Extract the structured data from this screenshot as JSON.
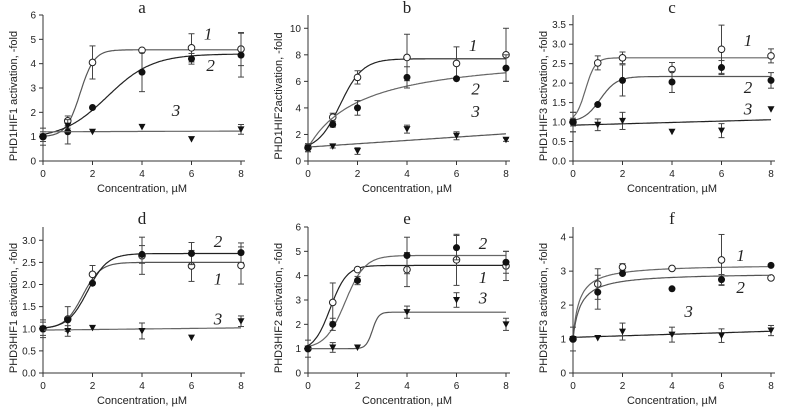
{
  "chart_data": [
    {
      "type": "scatter",
      "title": "a",
      "xlabel": "Concentration, µM",
      "ylabel": "PHD1HIF1 activation, -fold",
      "xlim": [
        0,
        8
      ],
      "xticks": [
        0,
        2,
        4,
        6,
        8
      ],
      "ylim": [
        0,
        6
      ],
      "yticks": [
        0,
        1,
        2,
        3,
        4,
        5,
        6
      ],
      "ytick_labels": [
        "0",
        "1",
        "2",
        "3",
        "4",
        "5",
        "6"
      ],
      "series": [
        {
          "name": "1",
          "marker": "open-circle",
          "points": [
            [
              0,
              1,
              0.35
            ],
            [
              1,
              1.65,
              0.2
            ],
            [
              2,
              4.05,
              0.68
            ],
            [
              4,
              4.55,
              0
            ],
            [
              6,
              4.65,
              0.58
            ],
            [
              8,
              4.6,
              0.68
            ]
          ],
          "fit": {
            "type": "sigmoid",
            "bottom": 1,
            "top": 4.57,
            "x50": 1.5,
            "k": 3.5
          },
          "label_at": [
            6.5,
            5.0
          ]
        },
        {
          "name": "2",
          "marker": "filled-circle",
          "points": [
            [
              0,
              1,
              0.2
            ],
            [
              1,
              1.2,
              0.5
            ],
            [
              2,
              2.2,
              0
            ],
            [
              4,
              3.65,
              0.8
            ],
            [
              6,
              4.2,
              0.22
            ],
            [
              8,
              4.35,
              0.9
            ]
          ],
          "fit": {
            "type": "sigmoid",
            "bottom": 0.9,
            "top": 4.4,
            "x50": 2.6,
            "k": 1.1
          },
          "label_at": [
            6.6,
            3.7
          ]
        },
        {
          "name": "3",
          "marker": "filled-triangle",
          "points": [
            [
              0,
              1,
              0
            ],
            [
              1,
              1.45,
              0.1
            ],
            [
              2,
              1.2,
              0
            ],
            [
              4,
              1.4,
              0
            ],
            [
              6,
              0.9,
              0
            ],
            [
              8,
              1.3,
              0.2
            ]
          ],
          "fit": {
            "type": "linear",
            "y0": 1.2,
            "y8": 1.23
          },
          "label_at": [
            5.2,
            1.85
          ]
        }
      ]
    },
    {
      "type": "scatter",
      "title": "b",
      "xlabel": "Concentration, µM",
      "ylabel": "PHD1HIF2activation, -fold",
      "xlim": [
        0,
        8
      ],
      "xticks": [
        0,
        2,
        4,
        6,
        8
      ],
      "ylim": [
        0,
        11
      ],
      "yticks": [
        0,
        2,
        4,
        6,
        8,
        10
      ],
      "ytick_labels": [
        "0",
        "2",
        "4",
        "6",
        "8",
        "10"
      ],
      "series": [
        {
          "name": "1",
          "marker": "open-circle",
          "points": [
            [
              0,
              1,
              0.3
            ],
            [
              1,
              3.3,
              0.3
            ],
            [
              2,
              6.3,
              0.5
            ],
            [
              4,
              7.8,
              1.75
            ],
            [
              6,
              7.35,
              1.25
            ],
            [
              8,
              8,
              2
            ]
          ],
          "fit": {
            "type": "sigmoid",
            "bottom": 0.8,
            "top": 7.7,
            "x50": 1.3,
            "k": 2.2
          },
          "label_at": [
            6.5,
            8.3
          ]
        },
        {
          "name": "2",
          "marker": "filled-circle",
          "points": [
            [
              0,
              1,
              0
            ],
            [
              1,
              2.75,
              0.2
            ],
            [
              2,
              4,
              0.55
            ],
            [
              4,
              6.3,
              0.8
            ],
            [
              6,
              6.2,
              0
            ],
            [
              8,
              7,
              1
            ]
          ],
          "fit": {
            "type": "hyperbolic",
            "bottom": 1,
            "top": 8.2,
            "K": 2.2
          },
          "label_at": [
            6.6,
            5.0
          ]
        },
        {
          "name": "3",
          "marker": "filled-triangle",
          "points": [
            [
              0,
              1,
              0.3
            ],
            [
              1,
              1.1,
              0.12
            ],
            [
              2,
              0.75,
              0.25
            ],
            [
              4,
              2.4,
              0.3
            ],
            [
              6,
              1.9,
              0.3
            ],
            [
              8,
              1.6,
              0.12
            ]
          ],
          "fit": {
            "type": "linear",
            "y0": 1.05,
            "y8": 2.05
          },
          "label_at": [
            6.6,
            3.3
          ]
        }
      ]
    },
    {
      "type": "scatter",
      "title": "c",
      "xlabel": "Concentration, µM",
      "ylabel": "PHD1HIF3 activation, -fold",
      "xlim": [
        0,
        8
      ],
      "xticks": [
        0,
        2,
        4,
        6,
        8
      ],
      "ylim": [
        0,
        3.75
      ],
      "yticks": [
        0,
        0.5,
        1,
        1.5,
        2,
        2.5,
        3,
        3.5
      ],
      "ytick_labels": [
        "0.0",
        "0.5",
        "1.0",
        "1.5",
        "2.0",
        "2.5",
        "3.0",
        "3.5"
      ],
      "series": [
        {
          "name": "1",
          "marker": "open-circle",
          "points": [
            [
              0,
              1,
              0.25
            ],
            [
              1,
              2.52,
              0.18
            ],
            [
              2,
              2.65,
              0.15
            ],
            [
              4,
              2.35,
              0.18
            ],
            [
              6,
              2.87,
              0.62
            ],
            [
              8,
              2.7,
              0.18
            ]
          ],
          "fit": {
            "type": "sigmoid",
            "bottom": 1,
            "top": 2.65,
            "x50": 0.5,
            "k": 5
          },
          "label_at": [
            6.9,
            2.95
          ]
        },
        {
          "name": "2",
          "marker": "filled-circle",
          "points": [
            [
              0,
              1,
              0.1
            ],
            [
              1,
              1.45,
              0
            ],
            [
              2,
              2.07,
              0.4
            ],
            [
              4,
              2.03,
              0.27
            ],
            [
              6,
              2.4,
              0.18
            ],
            [
              8,
              2.07,
              0.2
            ]
          ],
          "fit": {
            "type": "sigmoid",
            "bottom": 1,
            "top": 2.17,
            "x50": 1.1,
            "k": 3
          },
          "label_at": [
            6.9,
            1.75
          ]
        },
        {
          "name": "3",
          "marker": "filled-triangle",
          "points": [
            [
              0,
              1,
              0.25
            ],
            [
              1,
              0.93,
              0.15
            ],
            [
              2,
              1.03,
              0.22
            ],
            [
              4,
              0.75,
              0
            ],
            [
              6,
              0.78,
              0.18
            ],
            [
              8,
              1.33,
              0
            ]
          ],
          "fit": {
            "type": "linear",
            "y0": 0.92,
            "y8": 1.06
          },
          "label_at": [
            6.9,
            1.2
          ]
        }
      ]
    },
    {
      "type": "scatter",
      "title": "d",
      "xlabel": "Concentration, µM",
      "ylabel": "PHD3HIF1 activation, -fold",
      "xlim": [
        0,
        8
      ],
      "xticks": [
        0,
        2,
        4,
        6,
        8
      ],
      "ylim": [
        0,
        3.3
      ],
      "yticks": [
        0,
        0.5,
        1,
        1.5,
        2,
        2.5,
        3
      ],
      "ytick_labels": [
        "0.0",
        "0.5",
        "1.0",
        "1.5",
        "2.0",
        "2.5",
        "3.0"
      ],
      "series": [
        {
          "name": "1",
          "marker": "open-circle",
          "points": [
            [
              0,
              1,
              0.2
            ],
            [
              1,
              1.22,
              0.28
            ],
            [
              2,
              2.23,
              0.2
            ],
            [
              4,
              2.65,
              0.42
            ],
            [
              6,
              2.42,
              0.35
            ],
            [
              8,
              2.43,
              0.42
            ]
          ],
          "fit": {
            "type": "sigmoid",
            "bottom": 1,
            "top": 2.5,
            "x50": 1.6,
            "k": 2.8
          },
          "label_at": [
            6.9,
            2.0
          ]
        },
        {
          "name": "2",
          "marker": "filled-circle",
          "points": [
            [
              0,
              1,
              0.15
            ],
            [
              1,
              1.2,
              0
            ],
            [
              2,
              2.03,
              0
            ],
            [
              4,
              2.68,
              0.2
            ],
            [
              6,
              2.7,
              0.25
            ],
            [
              8,
              2.72,
              0.22
            ]
          ],
          "fit": {
            "type": "sigmoid",
            "bottom": 1,
            "top": 2.7,
            "x50": 1.8,
            "k": 2.5
          },
          "label_at": [
            6.9,
            2.85
          ]
        },
        {
          "name": "3",
          "marker": "filled-triangle",
          "points": [
            [
              0,
              1,
              0
            ],
            [
              1,
              0.95,
              0.12
            ],
            [
              2,
              1.02,
              0
            ],
            [
              4,
              0.95,
              0.18
            ],
            [
              6,
              0.8,
              0
            ],
            [
              8,
              1.17,
              0.12
            ]
          ],
          "fit": {
            "type": "linear",
            "y0": 0.97,
            "y8": 1.02
          },
          "label_at": [
            6.9,
            1.1
          ]
        }
      ]
    },
    {
      "type": "scatter",
      "title": "e",
      "xlabel": "Concentration, µM",
      "ylabel": "PHD3HIF2 activation, -fold",
      "xlim": [
        0,
        8
      ],
      "xticks": [
        0,
        2,
        4,
        6,
        8
      ],
      "ylim": [
        0,
        6
      ],
      "yticks": [
        0,
        1,
        2,
        3,
        4,
        5,
        6
      ],
      "ytick_labels": [
        "0",
        "1",
        "2",
        "3",
        "4",
        "5",
        "6"
      ],
      "series": [
        {
          "name": "1",
          "marker": "open-circle",
          "points": [
            [
              0,
              1,
              0.35
            ],
            [
              1,
              2.9,
              0.8
            ],
            [
              2,
              4.25,
              0
            ],
            [
              4,
              4.25,
              0.7
            ],
            [
              6,
              4.65,
              1.05
            ],
            [
              8,
              4.4,
              0.6
            ]
          ],
          "fit": {
            "type": "sigmoid",
            "bottom": 0.9,
            "top": 4.42,
            "x50": 0.9,
            "k": 3
          },
          "label_at": [
            6.9,
            3.7
          ]
        },
        {
          "name": "2",
          "marker": "filled-circle",
          "points": [
            [
              0,
              1,
              0
            ],
            [
              1,
              2,
              0.25
            ],
            [
              2,
              3.8,
              0.17
            ],
            [
              4,
              4.83,
              0.75
            ],
            [
              6,
              5.15,
              0.5
            ],
            [
              8,
              4.55,
              0.45
            ]
          ],
          "fit": {
            "type": "sigmoid",
            "bottom": 1,
            "top": 4.83,
            "x50": 1.5,
            "k": 2.5
          },
          "label_at": [
            6.9,
            5.1
          ]
        },
        {
          "name": "3",
          "marker": "filled-triangle",
          "points": [
            [
              0,
              1,
              0
            ],
            [
              1,
              1.05,
              0.2
            ],
            [
              2,
              1.05,
              0
            ],
            [
              4,
              2.5,
              0.25
            ],
            [
              6,
              3,
              0.3
            ],
            [
              8,
              2,
              0.25
            ]
          ],
          "fit": {
            "type": "sigmoid",
            "bottom": 1,
            "top": 2.5,
            "x50": 2.6,
            "k": 8
          },
          "label_at": [
            6.9,
            2.85
          ]
        }
      ]
    },
    {
      "type": "scatter",
      "title": "f",
      "xlabel": "Concentration, µM",
      "ylabel": "PHD3HIF3 activation, -fold",
      "xlim": [
        0,
        8
      ],
      "xticks": [
        0,
        2,
        4,
        6,
        8
      ],
      "ylim": [
        0,
        4.3
      ],
      "yticks": [
        0,
        1,
        2,
        3,
        4
      ],
      "ytick_labels": [
        "0",
        "1",
        "2",
        "3",
        "4"
      ],
      "series": [
        {
          "name": "1",
          "marker": "open-circle",
          "points": [
            [
              0,
              1,
              0
            ],
            [
              1,
              2.62,
              0.45
            ],
            [
              2,
              3.12,
              0.1
            ],
            [
              4,
              3.08,
              0.05
            ],
            [
              6,
              3.33,
              0.75
            ],
            [
              8,
              2.8,
              0
            ]
          ],
          "fit": {
            "type": "hyperbolic",
            "bottom": 1,
            "top": 3.2,
            "K": 0.25
          },
          "label_at": [
            6.6,
            3.3
          ]
        },
        {
          "name": "2",
          "marker": "filled-circle",
          "points": [
            [
              0,
              1,
              0.35
            ],
            [
              1,
              2.38,
              0.5
            ],
            [
              2,
              2.93,
              0
            ],
            [
              4,
              2.48,
              0
            ],
            [
              6,
              2.75,
              0.15
            ],
            [
              8,
              3.17,
              0
            ]
          ],
          "fit": {
            "type": "hyperbolic",
            "bottom": 1,
            "top": 2.95,
            "K": 0.3
          },
          "label_at": [
            6.6,
            2.35
          ]
        },
        {
          "name": "3",
          "marker": "filled-triangle",
          "points": [
            [
              0,
              1,
              0
            ],
            [
              1,
              1.03,
              0
            ],
            [
              2,
              1.22,
              0.25
            ],
            [
              4,
              1.13,
              0.22
            ],
            [
              6,
              1.1,
              0.2
            ],
            [
              8,
              1.25,
              0.15
            ]
          ],
          "fit": {
            "type": "linear",
            "y0": 1.05,
            "y8": 1.23
          },
          "label_at": [
            4.5,
            1.65
          ]
        }
      ]
    }
  ]
}
